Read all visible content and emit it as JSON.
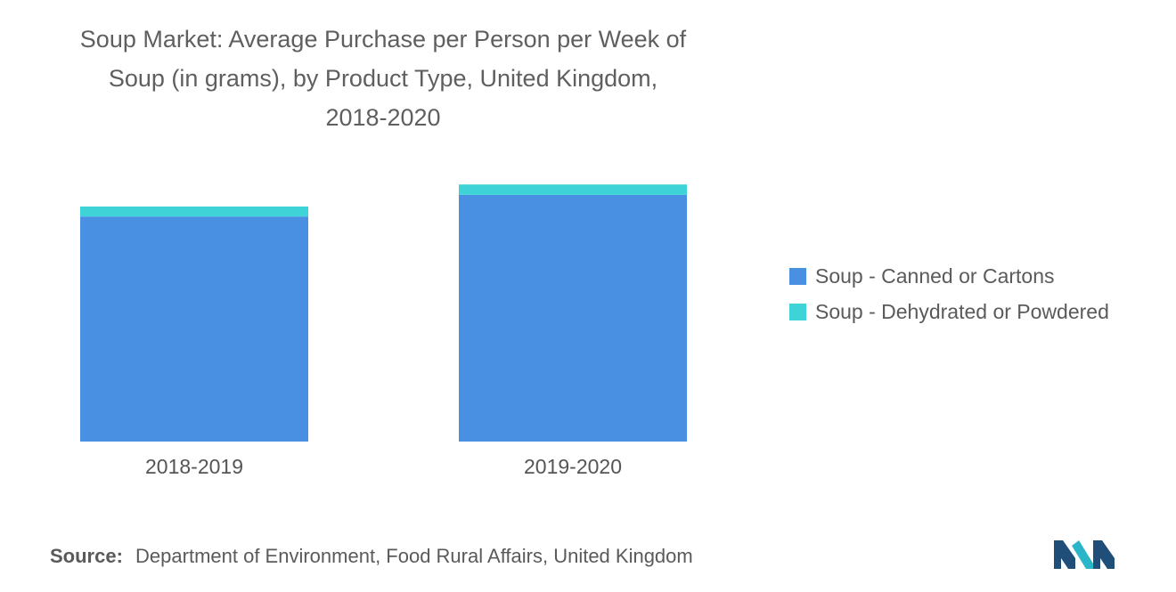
{
  "title_lines": [
    "Soup Market: Average Purchase per Person per Week of",
    "Soup (in grams), by Product Type, United Kingdom,",
    "2018-2020"
  ],
  "colors": {
    "canned": "#4a90e2",
    "dehydrated": "#3ed3d6",
    "logo_dark": "#1f4e79",
    "logo_teal": "#2bb5c9"
  },
  "chart_data": {
    "type": "bar",
    "stacked": true,
    "categories": [
      "2018-2019",
      "2019-2020"
    ],
    "series": [
      {
        "name": "Soup - Canned or Cartons",
        "values": [
          52,
          57
        ],
        "color": "#4a90e2"
      },
      {
        "name": "Soup - Dehydrated or Powdered",
        "values": [
          2.3,
          2.4
        ],
        "color": "#3ed3d6"
      }
    ],
    "ylim": [
      0,
      65
    ],
    "grid": false,
    "y_axis_visible": false,
    "legend_position": "right"
  },
  "legend": [
    {
      "label": "Soup - Canned or Cartons",
      "color": "#4a90e2"
    },
    {
      "label": "Soup - Dehydrated or Powdered",
      "color": "#3ed3d6"
    }
  ],
  "source": {
    "label": "Source:",
    "text": "Department of Environment, Food Rural Affairs, United Kingdom"
  },
  "logo": {
    "icon": "mordor-intelligence-logo-icon"
  }
}
